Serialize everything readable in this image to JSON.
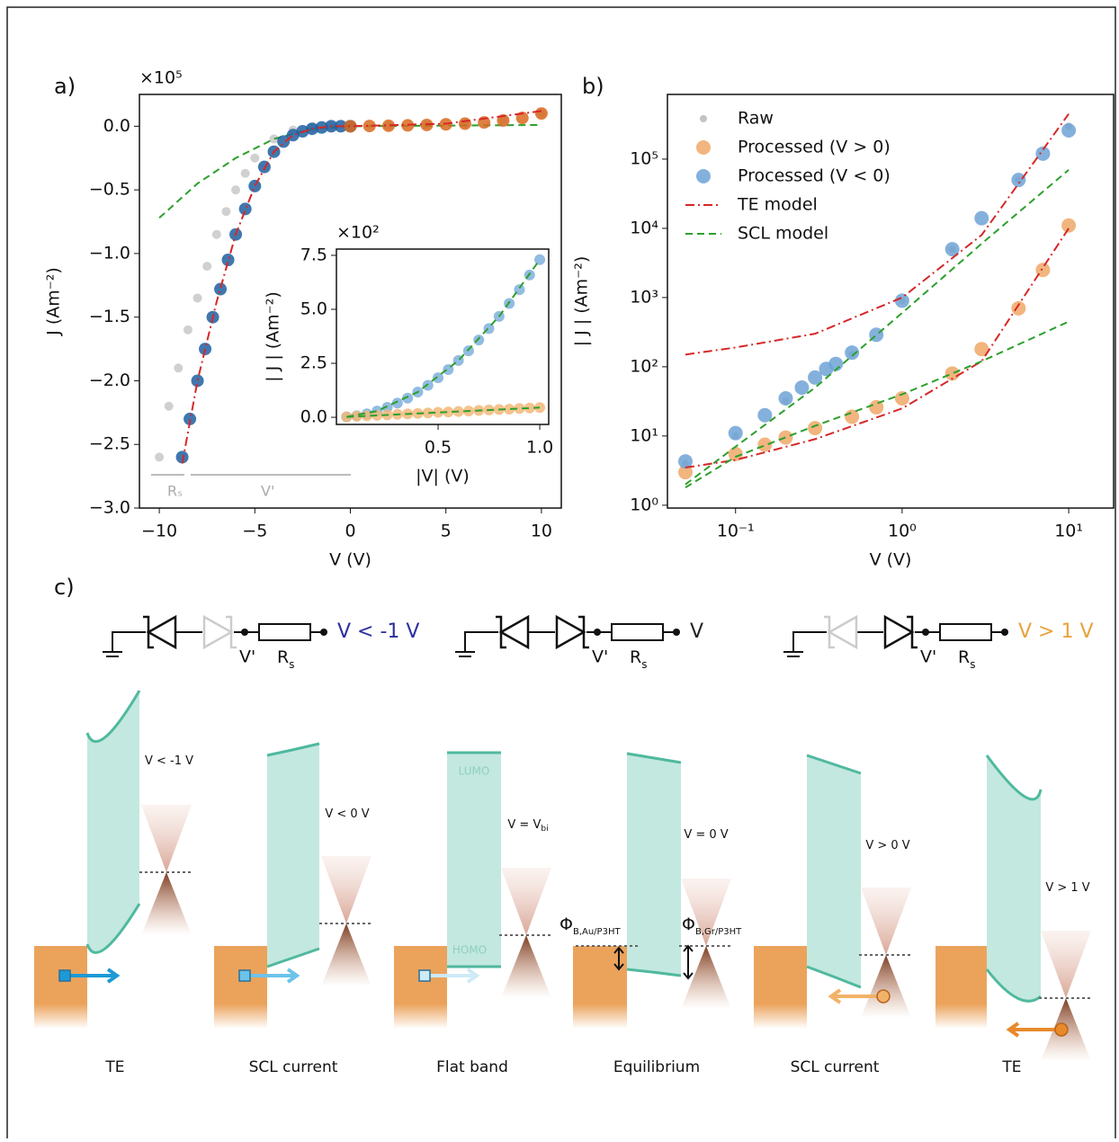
{
  "chart_data": [
    {
      "type": "line",
      "panel": "a)",
      "multiplier": "×10⁵",
      "xlabel": "V (V)",
      "ylabel": "J (Am⁻²)",
      "xlim": [
        -11.04,
        11.04
      ],
      "ylim": [
        -3.0,
        0.25
      ],
      "xticks": [
        {
          "value": -10,
          "label": "−10"
        },
        {
          "value": -5,
          "label": "−5"
        },
        0,
        5,
        10
      ],
      "yticks": [
        {
          "value": 0,
          "label": "0.0"
        },
        {
          "value": -0.5,
          "label": "−0.5"
        },
        {
          "value": -1,
          "label": "−1.0"
        },
        {
          "value": -1.5,
          "label": "−1.5"
        },
        {
          "value": -2,
          "label": "−2.0"
        },
        {
          "value": -2.5,
          "label": "−2.5"
        },
        {
          "value": -3,
          "label": "−3.0"
        }
      ],
      "annotations": [
        "Rₛ",
        "V'"
      ],
      "series": [
        {
          "color": "#c8c8c8",
          "marker": true,
          "size": 5,
          "x": [
            -10,
            -9.5,
            -9,
            -8.5,
            -8,
            -7.5,
            -7,
            -6.5,
            -6,
            -5.5,
            -5,
            -4,
            -3,
            -2,
            -1,
            0,
            2,
            4,
            6,
            8,
            10
          ],
          "values": [
            -2.6,
            -2.2,
            -1.9,
            -1.6,
            -1.35,
            -1.1,
            -0.85,
            -0.67,
            -0.5,
            -0.37,
            -0.25,
            -0.1,
            -0.03,
            -0.01,
            0,
            0,
            0.005,
            0.01,
            0.02,
            0.05,
            0.1
          ]
        },
        {
          "color": "#2ca02c",
          "linestyle": "dashed",
          "x": [
            -10,
            -8,
            -6,
            -4,
            -2,
            0,
            5,
            10
          ],
          "values": [
            -0.72,
            -0.45,
            -0.25,
            -0.1,
            -0.02,
            0,
            0.005,
            0.01
          ]
        },
        {
          "color": "#1f5fa0",
          "marker": true,
          "size": 7,
          "x": [
            -8.8,
            -8.4,
            -8,
            -7.6,
            -7.2,
            -6.8,
            -6.4,
            -6,
            -5.5,
            -5,
            -4.5,
            -4,
            -3.5,
            -3,
            -2.5,
            -2,
            -1.5,
            -1,
            -0.5,
            0
          ],
          "values": [
            -2.6,
            -2.3,
            -2.0,
            -1.75,
            -1.5,
            -1.28,
            -1.05,
            -0.85,
            -0.65,
            -0.47,
            -0.32,
            -0.2,
            -0.12,
            -0.07,
            -0.04,
            -0.02,
            -0.01,
            0,
            0,
            0
          ]
        },
        {
          "color": "#d9691e",
          "marker": true,
          "size": 7,
          "x": [
            0,
            1,
            2,
            3,
            4,
            5,
            6,
            7,
            8,
            9,
            10
          ],
          "values": [
            0,
            0.002,
            0.004,
            0.007,
            0.01,
            0.015,
            0.02,
            0.03,
            0.045,
            0.065,
            0.1
          ]
        },
        {
          "color": "#d62728",
          "linestyle": "dashdot",
          "x": [
            -8.8,
            -8,
            -7,
            -6,
            -5,
            -4,
            -3,
            -2,
            -1,
            0,
            5,
            10
          ],
          "values": [
            -2.65,
            -2.0,
            -1.38,
            -0.85,
            -0.47,
            -0.2,
            -0.07,
            -0.02,
            0,
            0,
            0.02,
            0.12
          ]
        }
      ]
    },
    {
      "type": "line",
      "multiplier": "×10²",
      "xlabel": "|V| (V)",
      "ylabel": "| J | (Am⁻²)",
      "xlim": [
        0,
        1.044
      ],
      "ylim": [
        -0.33,
        7.79
      ],
      "xticks": [
        0.5,
        {
          "value": 1,
          "label": "1.0"
        }
      ],
      "yticks": [
        {
          "value": 0,
          "label": "0.0"
        },
        2.5,
        {
          "value": 5,
          "label": "5.0"
        },
        7.5
      ],
      "series": [
        {
          "color": "#7fb0dc",
          "marker": true,
          "size": 6,
          "x": [
            0.05,
            0.1,
            0.15,
            0.2,
            0.25,
            0.3,
            0.35,
            0.4,
            0.45,
            0.5,
            0.55,
            0.6,
            0.65,
            0.7,
            0.75,
            0.8,
            0.85,
            0.9,
            0.95,
            1.0
          ],
          "values": [
            0.02,
            0.07,
            0.16,
            0.29,
            0.46,
            0.66,
            0.89,
            1.17,
            1.48,
            1.83,
            2.21,
            2.63,
            3.08,
            3.58,
            4.11,
            4.67,
            5.27,
            5.91,
            6.59,
            7.3
          ]
        },
        {
          "color": "#f2b97a",
          "marker": true,
          "size": 6,
          "x": [
            0.05,
            0.1,
            0.15,
            0.2,
            0.25,
            0.3,
            0.35,
            0.4,
            0.45,
            0.5,
            0.55,
            0.6,
            0.65,
            0.7,
            0.75,
            0.8,
            0.85,
            0.9,
            0.95,
            1.0
          ],
          "values": [
            0.02,
            0.05,
            0.07,
            0.09,
            0.11,
            0.14,
            0.16,
            0.18,
            0.2,
            0.23,
            0.25,
            0.27,
            0.29,
            0.32,
            0.34,
            0.36,
            0.38,
            0.41,
            0.43,
            0.45
          ]
        },
        {
          "color": "#2ca02c",
          "linestyle": "dashed",
          "x": [
            0.05,
            0.2,
            0.4,
            0.6,
            0.8,
            1.0
          ],
          "values": [
            0.02,
            0.29,
            1.17,
            2.63,
            4.67,
            7.3
          ]
        },
        {
          "color": "#2ca02c",
          "linestyle": "dashed",
          "x": [
            0.05,
            1.0
          ],
          "values": [
            0.02,
            0.45
          ]
        }
      ]
    },
    {
      "type": "line",
      "panel": "b)",
      "xlabel": "V (V)",
      "ylabel": "| J | (Am⁻²)",
      "xscale": "log",
      "yscale": "log",
      "xlim": [
        0.039,
        18.6
      ],
      "ylim": [
        0.91,
        860000
      ],
      "legend": "upper left",
      "xticks": [
        {
          "value": 0.1,
          "label": "10⁻¹"
        },
        {
          "value": 1,
          "label": "10⁰"
        },
        {
          "value": 10,
          "label": "10¹"
        }
      ],
      "yticks": [
        {
          "value": 1,
          "label": "10⁰"
        },
        {
          "value": 10,
          "label": "10¹"
        },
        {
          "value": 100,
          "label": "10²"
        },
        {
          "value": 1000,
          "label": "10³"
        },
        {
          "value": 10000,
          "label": "10⁴"
        },
        {
          "value": 100000,
          "label": "10⁵"
        }
      ],
      "series": [
        {
          "name": "Raw",
          "color": "#b8b8b8",
          "marker": true,
          "size": 4,
          "x": [
            0.05,
            0.1,
            0.2,
            0.5,
            1,
            2,
            5,
            10
          ],
          "values": [
            4,
            10,
            32,
            150,
            900,
            5000,
            50000,
            300000
          ]
        },
        {
          "name": "Processed (V > 0)",
          "color": "#f0a868",
          "marker": true,
          "size": 8,
          "x": [
            0.05,
            0.1,
            0.15,
            0.2,
            0.3,
            0.5,
            0.7,
            1,
            2,
            3,
            5,
            7,
            10
          ],
          "values": [
            3,
            5.5,
            7.5,
            9.5,
            13,
            19,
            26,
            35,
            80,
            180,
            700,
            2500,
            11000
          ]
        },
        {
          "name": "Processed (V < 0)",
          "color": "#6fa3d6",
          "marker": true,
          "size": 8,
          "x": [
            0.05,
            0.1,
            0.15,
            0.2,
            0.25,
            0.3,
            0.35,
            0.4,
            0.5,
            0.7,
            1,
            2,
            3,
            5,
            7,
            10
          ],
          "values": [
            4.3,
            11,
            20,
            35,
            50,
            70,
            93,
            110,
            160,
            290,
            900,
            5000,
            14000,
            50000,
            120000,
            260000
          ]
        },
        {
          "name": "TE model",
          "color": "#d62728",
          "linestyle": "dashdot",
          "x": [
            0.05,
            0.1,
            0.3,
            1,
            3,
            10
          ],
          "values": [
            150,
            190,
            300,
            1000,
            8000,
            450000
          ]
        },
        {
          "name": "SCL model",
          "color": "#2ca02c",
          "linestyle": "dashed",
          "x": [
            0.05,
            0.1,
            0.3,
            1,
            3,
            10
          ],
          "values": [
            2,
            7,
            50,
            600,
            6000,
            70000
          ]
        },
        {
          "color": "#d62728",
          "linestyle": "dashdot",
          "x": [
            0.05,
            0.1,
            0.3,
            1,
            3,
            10
          ],
          "values": [
            3.5,
            4.5,
            9,
            25,
            120,
            10000
          ]
        },
        {
          "color": "#2ca02c",
          "linestyle": "dashed",
          "x": [
            0.05,
            0.1,
            0.3,
            1,
            3,
            10
          ],
          "values": [
            1.8,
            5,
            14,
            40,
            120,
            450
          ]
        }
      ]
    }
  ],
  "diagram": {
    "label": "c)",
    "circuits": [
      {
        "bias": "V < -1 V",
        "color": "#2b2f9e",
        "v_prime": "V'",
        "r": "R",
        "r_sub": "s"
      },
      {
        "bias": "V",
        "color": "#222222",
        "v_prime": "V'",
        "r": "R",
        "r_sub": "s"
      },
      {
        "bias": "V > 1 V",
        "color": "#e8a33c",
        "v_prime": "V'",
        "r": "R",
        "r_sub": "s"
      }
    ],
    "panels": [
      {
        "bias": "V < -1 V",
        "caption": "TE"
      },
      {
        "bias": "V < 0 V",
        "caption": "SCL current"
      },
      {
        "bias": "V = V",
        "bias_sub": "bi",
        "caption": "Flat band",
        "lumo": "LUMO",
        "homo": "HOMO"
      },
      {
        "bias": "V = 0 V",
        "caption": "Equilibrium",
        "phi_left": {
          "symbol": "Φ",
          "sub": "B,Au/P3HT"
        },
        "phi_right": {
          "symbol": "Φ",
          "sub": "B,Gr/P3HT"
        }
      },
      {
        "bias": "V > 0 V",
        "caption": "SCL current"
      },
      {
        "bias": "V > 1 V",
        "caption": "TE"
      }
    ]
  }
}
